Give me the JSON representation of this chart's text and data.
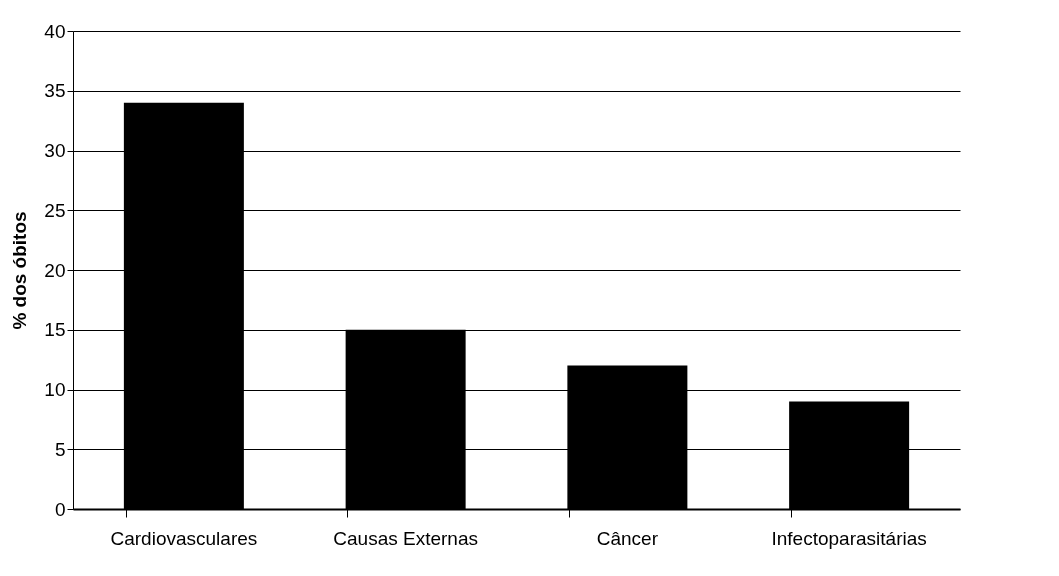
{
  "chart_data": {
    "type": "bar",
    "ylabel": "% dos óbitos",
    "categories": [
      "Cardiovasculares",
      "Causas Externas",
      "Câncer",
      "Infectoparasitárias"
    ],
    "values": [
      34,
      15,
      12,
      9
    ],
    "color": "#000000",
    "ylim": [
      0,
      40
    ],
    "yticks": [
      0,
      5,
      10,
      15,
      20,
      25,
      30,
      35,
      40
    ],
    "grid": "y"
  }
}
